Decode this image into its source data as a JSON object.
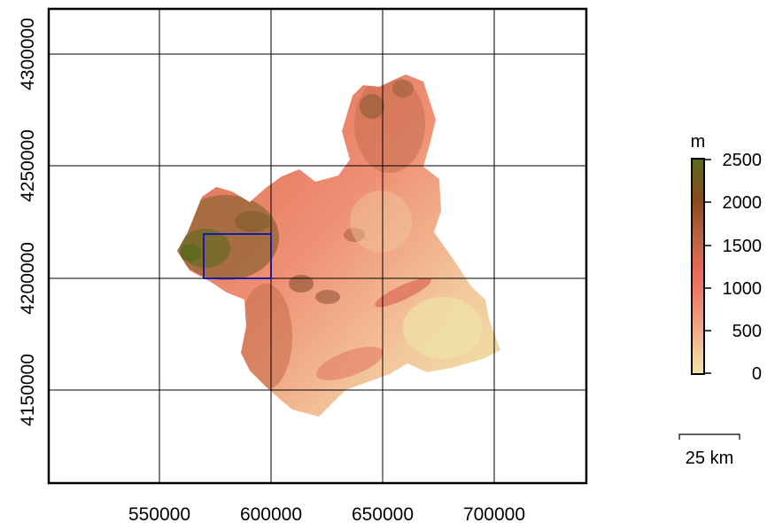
{
  "map": {
    "x_ticks": [
      "550000",
      "600000",
      "650000",
      "700000"
    ],
    "y_ticks": [
      "4300000",
      "4250000",
      "4200000",
      "4150000"
    ],
    "highlight_box_color": "#1a1aa8",
    "frame_color": "#000000"
  },
  "legend": {
    "unit": "m",
    "labels": [
      "2500",
      "2000",
      "1500",
      "1000",
      "500",
      "0"
    ],
    "colors": [
      "#f3e6a6",
      "#f1b78e",
      "#ef8a6e",
      "#e86a56",
      "#b9633f",
      "#8b4a1c",
      "#5a6a1c"
    ]
  },
  "scale_bar": {
    "label": "25 km"
  }
}
